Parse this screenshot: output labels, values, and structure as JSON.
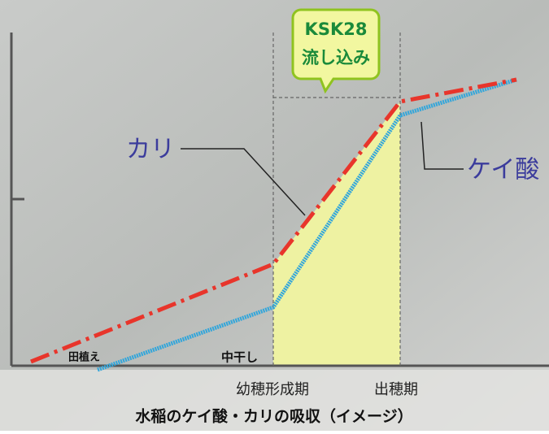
{
  "callout": {
    "lines": [
      "KSK28",
      "流し込み"
    ]
  },
  "curves": {
    "potassium": {
      "label": "カリ"
    },
    "silicic_acid": {
      "label": "ケイ酸"
    }
  },
  "stages": {
    "planting": "田植え",
    "mid_drying": "中干し",
    "panicle_formation": "幼穂形成期",
    "heading": "出穂期"
  },
  "caption": "水稲のケイ酸・カリの吸収（イメージ）"
}
